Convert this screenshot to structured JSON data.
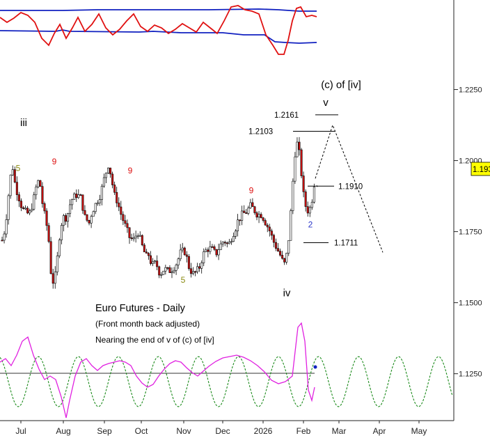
{
  "chart_data": {
    "type": "candlestick",
    "title": "Euro Futures - Daily",
    "subtitle": "(Front month back adjusted)",
    "note": "Nearing the end of v of (c) of [iv]",
    "x_ticks": [
      "Jul",
      "Aug",
      "Sep",
      "Oct",
      "Nov",
      "Dec",
      "2026",
      "Feb",
      "Mar",
      "Apr",
      "May"
    ],
    "y_ticks": [
      "1.2250",
      "1.2000",
      "1.1750",
      "1.1500",
      "1.1250"
    ],
    "last_price": "1.1933",
    "ylim": [
      1.1085,
      1.2565
    ],
    "price_path": [
      [
        1,
        1.171
      ],
      [
        5,
        1.173
      ],
      [
        10,
        1.182
      ],
      [
        14,
        1.193
      ],
      [
        18,
        1.198
      ],
      [
        22,
        1.191
      ],
      [
        26,
        1.188
      ],
      [
        32,
        1.183
      ],
      [
        36,
        1.182
      ],
      [
        42,
        1.181
      ],
      [
        48,
        1.186
      ],
      [
        54,
        1.193
      ],
      [
        58,
        1.191
      ],
      [
        62,
        1.183
      ],
      [
        66,
        1.179
      ],
      [
        70,
        1.172
      ],
      [
        74,
        1.158
      ],
      [
        78,
        1.157
      ],
      [
        82,
        1.165
      ],
      [
        86,
        1.175
      ],
      [
        90,
        1.18
      ],
      [
        96,
        1.18
      ],
      [
        102,
        1.186
      ],
      [
        110,
        1.188
      ],
      [
        116,
        1.187
      ],
      [
        122,
        1.18
      ],
      [
        128,
        1.178
      ],
      [
        132,
        1.182
      ],
      [
        138,
        1.185
      ],
      [
        144,
        1.188
      ],
      [
        150,
        1.194
      ],
      [
        156,
        1.199
      ],
      [
        160,
        1.194
      ],
      [
        164,
        1.188
      ],
      [
        168,
        1.186
      ],
      [
        174,
        1.181
      ],
      [
        180,
        1.177
      ],
      [
        186,
        1.173
      ],
      [
        192,
        1.172
      ],
      [
        198,
        1.175
      ],
      [
        204,
        1.17
      ],
      [
        210,
        1.166
      ],
      [
        214,
        1.167
      ],
      [
        218,
        1.163
      ],
      [
        224,
        1.164
      ],
      [
        230,
        1.16
      ],
      [
        236,
        1.162
      ],
      [
        242,
        1.161
      ],
      [
        248,
        1.162
      ],
      [
        254,
        1.164
      ],
      [
        260,
        1.168
      ],
      [
        266,
        1.168
      ],
      [
        272,
        1.162
      ],
      [
        278,
        1.16
      ],
      [
        286,
        1.162
      ],
      [
        292,
        1.167
      ],
      [
        298,
        1.169
      ],
      [
        304,
        1.169
      ],
      [
        310,
        1.167
      ],
      [
        316,
        1.17
      ],
      [
        322,
        1.172
      ],
      [
        328,
        1.17
      ],
      [
        334,
        1.174
      ],
      [
        338,
        1.176
      ],
      [
        342,
        1.179
      ],
      [
        348,
        1.181
      ],
      [
        354,
        1.182
      ],
      [
        360,
        1.184
      ],
      [
        364,
        1.183
      ],
      [
        370,
        1.181
      ],
      [
        376,
        1.181
      ],
      [
        382,
        1.178
      ],
      [
        388,
        1.175
      ],
      [
        392,
        1.172
      ],
      [
        396,
        1.17
      ],
      [
        400,
        1.168
      ],
      [
        404,
        1.166
      ],
      [
        408,
        1.163
      ],
      [
        412,
        1.167
      ],
      [
        416,
        1.175
      ],
      [
        420,
        1.19
      ],
      [
        424,
        1.203
      ],
      [
        428,
        1.207
      ],
      [
        432,
        1.198
      ],
      [
        436,
        1.188
      ],
      [
        440,
        1.183
      ],
      [
        444,
        1.182
      ],
      [
        448,
        1.186
      ],
      [
        452,
        1.193
      ],
      [
        455,
        1.193
      ]
    ],
    "wave_labels": [
      {
        "text": "iii",
        "price": 1.2122,
        "x": 34,
        "color": "#000000"
      },
      {
        "text": "iv",
        "price": 1.1522,
        "x": 412,
        "color": "#000000"
      },
      {
        "text": "(c) of [iv]",
        "price": 1.2255,
        "x": 490,
        "color": "#000000"
      },
      {
        "text": "v",
        "price": 1.2192,
        "x": 468,
        "color": "#000000"
      },
      {
        "text": "2",
        "price": 1.1765,
        "x": 446,
        "color": "#2a35c9"
      },
      {
        "text": "9",
        "price": 1.1987,
        "x": 78,
        "color": "#dd1111"
      },
      {
        "text": "9",
        "price": 1.1955,
        "x": 187,
        "color": "#dd1111"
      },
      {
        "text": "9",
        "price": 1.1885,
        "x": 361,
        "color": "#dd1111"
      },
      {
        "text": "5",
        "price": 1.1964,
        "x": 26,
        "color": "#8a8a10"
      },
      {
        "text": "5",
        "price": 1.157,
        "x": 263,
        "color": "#8a8a10"
      }
    ],
    "price_markers": [
      {
        "label": "1.2161",
        "price": 1.2161,
        "line_x": [
          453,
          486
        ],
        "label_x": 394
      },
      {
        "label": "1.2103",
        "price": 1.2103,
        "line_x": [
          421,
          481
        ],
        "label_x": 357
      },
      {
        "label": "1.1910",
        "price": 1.191,
        "line_x": [
          442,
          480
        ],
        "label_x": 486
      },
      {
        "label": "1.1711",
        "price": 1.1711,
        "line_x": [
          436,
          472
        ],
        "label_x": 480
      }
    ],
    "projection": [
      [
        453,
        1.1937
      ],
      [
        478,
        1.2125
      ],
      [
        550,
        1.1677
      ]
    ]
  }
}
